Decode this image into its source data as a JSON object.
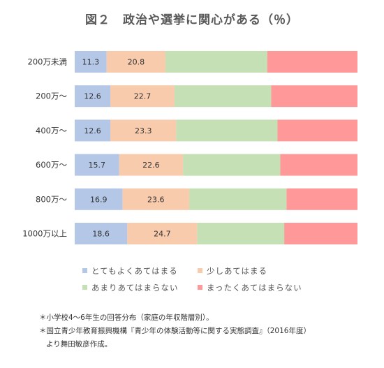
{
  "chart_data": {
    "type": "bar",
    "orientation": "horizontal",
    "stacked": true,
    "percent_stacked": true,
    "title": "図２　政治や選挙に関心がある（％）",
    "categories": [
      "200万未満",
      "200万～",
      "400万～",
      "600万～",
      "800万～",
      "1000万以上"
    ],
    "series": [
      {
        "name": "とてもよくあてはまる",
        "values": [
          11.3,
          12.6,
          12.6,
          15.7,
          16.9,
          18.6
        ],
        "color": "#b4c7e7"
      },
      {
        "name": "少しあてはまる",
        "values": [
          20.8,
          22.7,
          23.3,
          22.6,
          23.6,
          24.7
        ],
        "color": "#f8cbad"
      },
      {
        "name": "あまりあてはまらない",
        "values": [
          36.0,
          34.2,
          35.8,
          34.4,
          34.4,
          30.8
        ],
        "color": "#c5e0b4"
      },
      {
        "name": "まったくあてはまらない",
        "values": [
          31.9,
          30.5,
          28.3,
          27.3,
          25.1,
          25.9
        ],
        "color": "#ff9999"
      }
    ],
    "labeled_series": [
      0,
      1
    ],
    "xlim": [
      0,
      100
    ],
    "grid": false,
    "legend_position": "bottom"
  },
  "notes": [
    "＊小学校4～6年生の回答分布（家庭の年収階層別）。",
    "＊国立青少年教育振興機構『青少年の体験活動等に関する実態調査』（2016年度）",
    "より舞田敏彦作成。"
  ]
}
